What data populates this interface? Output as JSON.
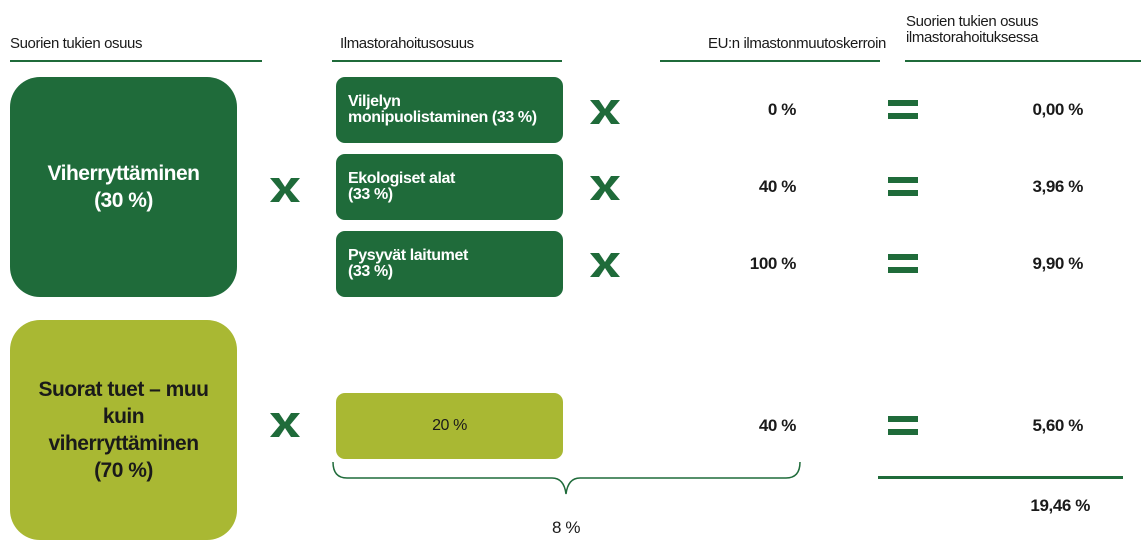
{
  "headers": {
    "direct_support_share": "Suorien tukien osuus",
    "climate_finance_share": "Ilmastorahoitusosuus",
    "eu_coefficient": "EU:n ilmastonmuutoskerroin",
    "result": [
      "Suorien tukien osuus",
      "ilmastorahoituksessa"
    ]
  },
  "groups": [
    {
      "label": [
        "Viherryttäminen",
        "(30 %)"
      ],
      "rows": [
        {
          "label": [
            "Viljelyn",
            "monipuolistaminen (33 %)"
          ],
          "coefficient": "0 %",
          "result": "0,00 %"
        },
        {
          "label": [
            "Ekologiset alat",
            "(33 %)"
          ],
          "coefficient": "40 %",
          "result": "3,96 %"
        },
        {
          "label": [
            "Pysyvät laitumet",
            "(33 %)"
          ],
          "coefficient": "100 %",
          "result": "9,90 %"
        }
      ]
    },
    {
      "label": [
        "Suorat tuet – muu",
        "kuin",
        "viherryttäminen",
        "(70 %)"
      ],
      "rows": [
        {
          "label": [
            "20 %"
          ],
          "coefficient": "40 %",
          "result": "5,60 %"
        }
      ]
    }
  ],
  "climate_finance_sum": "8 %",
  "total": "19,46 %"
}
